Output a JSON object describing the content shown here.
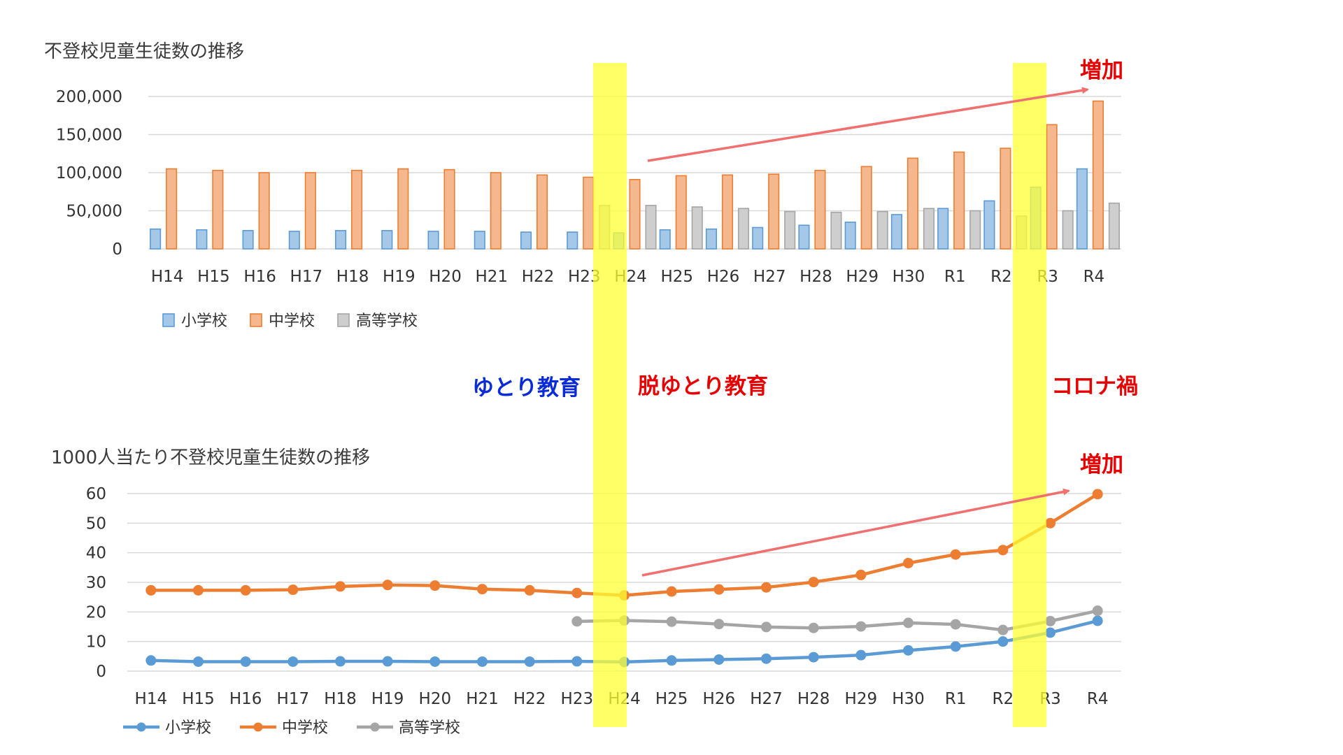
{
  "colors": {
    "elementary": "#5b9bd5",
    "junior_high": "#ed7d31",
    "high_school": "#a5a5a5",
    "highlight": "#ffff33",
    "arrow": "#f07070",
    "label_blue": "#0a2bd8",
    "label_red": "#e60000"
  },
  "annotations": {
    "yutori": "ゆとり教育",
    "datsu_yutori": "脱ゆとり教育",
    "corona": "コロナ禍",
    "increase_top": "増加",
    "increase_bottom": "増加"
  },
  "chart_data": [
    {
      "type": "bar",
      "title": "不登校児童生徒数の推移",
      "categories": [
        "H14",
        "H15",
        "H16",
        "H17",
        "H18",
        "H19",
        "H20",
        "H21",
        "H22",
        "H23",
        "H24",
        "H25",
        "H26",
        "H27",
        "H28",
        "H29",
        "H30",
        "R1",
        "R2",
        "R3",
        "R4"
      ],
      "ylim": [
        0,
        200000
      ],
      "yticks": [
        "0",
        "50,000",
        "100,000",
        "150,000",
        "200,000"
      ],
      "yticks_values": [
        0,
        50000,
        100000,
        150000,
        200000
      ],
      "grid": true,
      "legend_position": "bottom-left",
      "series": [
        {
          "name": "小学校",
          "color": "#5b9bd5",
          "values": [
            26000,
            25000,
            24000,
            23000,
            24000,
            24000,
            23000,
            23000,
            22000,
            22000,
            21000,
            25000,
            26000,
            28000,
            31000,
            35000,
            45000,
            53000,
            63000,
            81000,
            105000
          ]
        },
        {
          "name": "中学校",
          "color": "#ed7d31",
          "values": [
            105000,
            103000,
            100000,
            100000,
            103000,
            105000,
            104000,
            100000,
            97000,
            94000,
            91000,
            96000,
            97000,
            98000,
            103000,
            108000,
            119000,
            127000,
            132000,
            163000,
            194000
          ]
        },
        {
          "name": "高等学校",
          "color": "#a5a5a5",
          "values": [
            null,
            null,
            null,
            null,
            null,
            null,
            null,
            null,
            null,
            57000,
            57000,
            55000,
            53000,
            49000,
            48000,
            49000,
            53000,
            50000,
            43000,
            50000,
            60000
          ]
        }
      ]
    },
    {
      "type": "line",
      "title": "1000人当たり不登校児童生徒数の推移",
      "categories": [
        "H14",
        "H15",
        "H16",
        "H17",
        "H18",
        "H19",
        "H20",
        "H21",
        "H22",
        "H23",
        "H24",
        "H25",
        "H26",
        "H27",
        "H28",
        "H29",
        "H30",
        "R1",
        "R2",
        "R3",
        "R4"
      ],
      "ylim": [
        0,
        60
      ],
      "yticks": [
        "0",
        "10",
        "20",
        "30",
        "40",
        "50",
        "60"
      ],
      "yticks_values": [
        0,
        10,
        20,
        30,
        40,
        50,
        60
      ],
      "grid": true,
      "legend_position": "bottom-left",
      "series": [
        {
          "name": "小学校",
          "color": "#5b9bd5",
          "values": [
            3.6,
            3.2,
            3.2,
            3.2,
            3.3,
            3.3,
            3.2,
            3.2,
            3.2,
            3.3,
            3.1,
            3.6,
            3.9,
            4.2,
            4.7,
            5.4,
            7.0,
            8.3,
            10.0,
            13.0,
            17.0
          ]
        },
        {
          "name": "中学校",
          "color": "#ed7d31",
          "values": [
            27.3,
            27.3,
            27.3,
            27.5,
            28.6,
            29.1,
            28.9,
            27.7,
            27.3,
            26.4,
            25.6,
            26.9,
            27.6,
            28.3,
            30.1,
            32.5,
            36.5,
            39.4,
            40.9,
            50.0,
            59.8
          ]
        },
        {
          "name": "高等学校",
          "color": "#a5a5a5",
          "values": [
            null,
            null,
            null,
            null,
            null,
            null,
            null,
            null,
            null,
            16.8,
            17.1,
            16.7,
            15.9,
            14.9,
            14.6,
            15.1,
            16.3,
            15.8,
            13.9,
            16.9,
            20.4
          ]
        }
      ]
    }
  ]
}
